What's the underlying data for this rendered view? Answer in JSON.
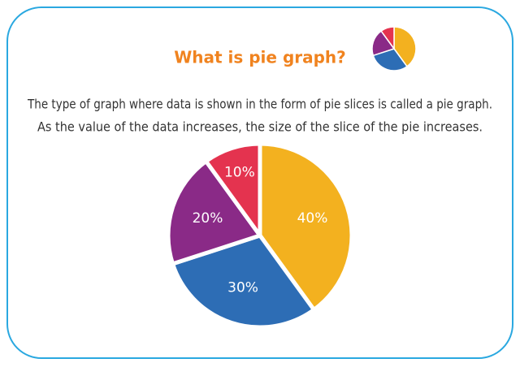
{
  "chart_data": {
    "type": "pie",
    "title": "What is pie graph?",
    "description": [
      "The type of graph where data is shown in the form of pie slices is called a pie graph.",
      "As the value of the data increases, the size of the slice of the pie increases."
    ],
    "values": [
      40,
      30,
      20,
      10
    ],
    "value_labels": [
      "40%",
      "30%",
      "20%",
      "10%"
    ],
    "colors": [
      "#f3b11f",
      "#2d6db5",
      "#8a2a87",
      "#e4334f"
    ]
  }
}
